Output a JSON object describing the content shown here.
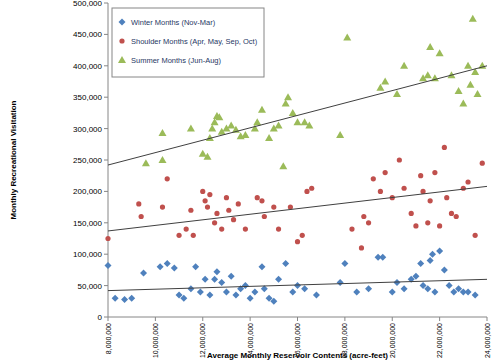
{
  "chart_data": {
    "type": "scatter",
    "x_label": "Average Monthly Reservoir Contents (acre-feet)",
    "y_label": "Monthly Recreational Visitation",
    "xlim": [
      8000000,
      24000000
    ],
    "ylim": [
      0,
      500000
    ],
    "xticks": [
      {
        "value": 8000000,
        "label": "8,000,000"
      },
      {
        "value": 10000000,
        "label": "10,000,000"
      },
      {
        "value": 12000000,
        "label": "12,000,000"
      },
      {
        "value": 14000000,
        "label": "14,000,000"
      },
      {
        "value": 16000000,
        "label": "16,000,000"
      },
      {
        "value": 18000000,
        "label": "18,000,000"
      },
      {
        "value": 20000000,
        "label": "20,000,000"
      },
      {
        "value": 22000000,
        "label": "22,000,000"
      },
      {
        "value": 24000000,
        "label": "24,000,000"
      }
    ],
    "yticks": [
      0,
      {
        "value": 50000,
        "label": "50,000"
      },
      {
        "value": 100000,
        "label": "100,000"
      },
      {
        "value": 150000,
        "label": "150,000"
      },
      {
        "value": 200000,
        "label": "200,000"
      },
      {
        "value": 250000,
        "label": "250,000"
      },
      {
        "value": 300000,
        "label": "300,000"
      },
      {
        "value": 350000,
        "label": "350,000"
      },
      {
        "value": 400000,
        "label": "400,000"
      },
      {
        "value": 450000,
        "label": "450,000"
      },
      {
        "value": 500000,
        "label": "500,000"
      }
    ],
    "grid": false,
    "legend": "top-left",
    "series": [
      {
        "name": "Winter Months (Nov-Mar)",
        "color": "#4f81bd",
        "marker": "diamond",
        "x": [
          8000000,
          8300000,
          8700000,
          9000000,
          9500000,
          10200000,
          10500000,
          10800000,
          11000000,
          11200000,
          11500000,
          11700000,
          11900000,
          12100000,
          12300000,
          12500000,
          12600000,
          12800000,
          13000000,
          13200000,
          13400000,
          13600000,
          13800000,
          14000000,
          14200000,
          14500000,
          14600000,
          14800000,
          15000000,
          15200000,
          15500000,
          15800000,
          16000000,
          16300000,
          16800000,
          17800000,
          18000000,
          18500000,
          19000000,
          19400000,
          19600000,
          20000000,
          20200000,
          20500000,
          20800000,
          21000000,
          21200000,
          21300000,
          21500000,
          21600000,
          21700000,
          21800000,
          22000000,
          22200000,
          22400000,
          22600000,
          22800000,
          23000000,
          23200000,
          23500000
        ],
        "values": [
          82000,
          30000,
          28000,
          30000,
          70000,
          80000,
          85000,
          78000,
          35000,
          30000,
          45000,
          80000,
          40000,
          60000,
          35000,
          60000,
          72000,
          55000,
          40000,
          65000,
          35000,
          45000,
          50000,
          30000,
          40000,
          80000,
          45000,
          30000,
          25000,
          60000,
          85000,
          40000,
          50000,
          45000,
          35000,
          55000,
          85000,
          40000,
          45000,
          95000,
          95000,
          40000,
          55000,
          45000,
          60000,
          65000,
          85000,
          50000,
          45000,
          90000,
          100000,
          40000,
          105000,
          75000,
          50000,
          40000,
          45000,
          40000,
          40000,
          35000
        ]
      },
      {
        "name": "Shoulder Months (Apr, May, Sep, Oct)",
        "color": "#c0504d",
        "marker": "circle",
        "x": [
          8000000,
          9300000,
          9400000,
          10300000,
          10500000,
          11000000,
          11300000,
          11500000,
          11600000,
          12000000,
          12100000,
          12200000,
          12300000,
          12500000,
          12600000,
          12800000,
          13000000,
          13100000,
          13300000,
          13500000,
          13800000,
          14300000,
          14500000,
          14600000,
          15000000,
          15200000,
          15700000,
          16000000,
          16200000,
          16400000,
          16600000,
          18300000,
          18700000,
          18800000,
          19000000,
          19200000,
          19500000,
          19700000,
          20000000,
          20300000,
          20500000,
          20800000,
          21000000,
          21200000,
          21300000,
          21500000,
          21600000,
          21800000,
          22000000,
          22200000,
          22300000,
          22500000,
          22700000,
          23000000,
          23200000,
          23500000,
          23800000
        ],
        "values": [
          125000,
          180000,
          160000,
          175000,
          220000,
          130000,
          140000,
          170000,
          130000,
          200000,
          185000,
          175000,
          195000,
          150000,
          165000,
          140000,
          190000,
          170000,
          155000,
          180000,
          140000,
          190000,
          185000,
          160000,
          175000,
          140000,
          175000,
          120000,
          130000,
          200000,
          205000,
          140000,
          110000,
          160000,
          150000,
          220000,
          200000,
          230000,
          190000,
          250000,
          205000,
          165000,
          145000,
          225000,
          200000,
          150000,
          185000,
          230000,
          145000,
          270000,
          190000,
          165000,
          160000,
          205000,
          215000,
          130000,
          245000
        ]
      },
      {
        "name": "Summer Months (Jun-Aug)",
        "color": "#9bbb59",
        "marker": "triangle",
        "x": [
          9600000,
          10300000,
          10300000,
          11500000,
          12000000,
          12200000,
          12300000,
          12400000,
          12500000,
          12600000,
          12700000,
          12800000,
          13000000,
          13200000,
          13400000,
          13600000,
          13800000,
          14200000,
          14300000,
          14500000,
          14800000,
          15000000,
          15200000,
          15400000,
          15500000,
          15600000,
          15800000,
          16000000,
          16300000,
          16500000,
          17800000,
          18100000,
          19500000,
          19700000,
          20200000,
          20500000,
          21300000,
          21500000,
          21600000,
          21800000,
          22000000,
          22500000,
          22800000,
          23000000,
          23200000,
          23300000,
          23400000,
          23500000,
          23600000,
          23800000
        ],
        "values": [
          245000,
          293000,
          250000,
          300000,
          260000,
          255000,
          285000,
          300000,
          310000,
          320000,
          318000,
          295000,
          300000,
          305000,
          298000,
          288000,
          290000,
          300000,
          310000,
          330000,
          285000,
          300000,
          305000,
          240000,
          340000,
          350000,
          325000,
          310000,
          310000,
          305000,
          290000,
          445000,
          365000,
          375000,
          355000,
          400000,
          380000,
          385000,
          430000,
          380000,
          420000,
          385000,
          360000,
          340000,
          400000,
          370000,
          475000,
          390000,
          355000,
          400000
        ]
      },
      {
        "type": "line",
        "color": "#404040",
        "line_style": "solid",
        "x": [
          8000000,
          24000000
        ],
        "values": [
          42000,
          60000
        ]
      },
      {
        "type": "line",
        "color": "#404040",
        "line_style": "solid",
        "x": [
          8000000,
          24000000
        ],
        "values": [
          137000,
          208000
        ]
      },
      {
        "type": "line",
        "color": "#404040",
        "line_style": "solid",
        "x": [
          8000000,
          24000000
        ],
        "values": [
          242000,
          400000
        ]
      }
    ]
  }
}
